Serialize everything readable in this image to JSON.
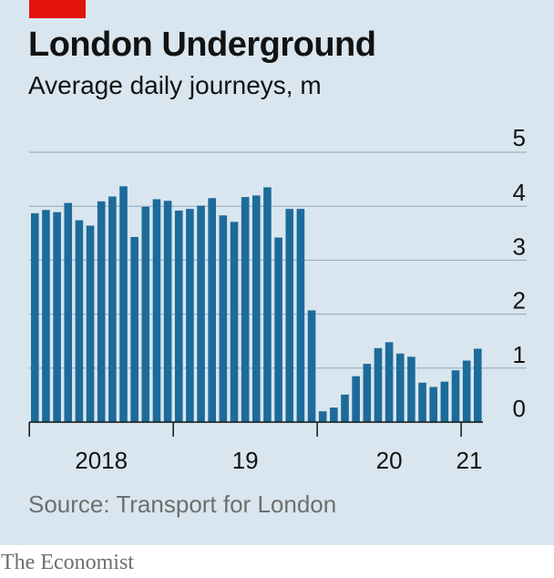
{
  "header": {
    "title": "London Underground",
    "subtitle": "Average daily journeys, m"
  },
  "footer": {
    "source": "Source: Transport for London",
    "brand": "The Economist"
  },
  "colors": {
    "bar": "#1d6b9a",
    "grid": "#8fa7b8",
    "baseline": "#121212",
    "accent": "#e3120b",
    "background": "#d9e6ef"
  },
  "chart_data": {
    "type": "bar",
    "title": "London Underground",
    "subtitle": "Average daily journeys, m",
    "ylabel": "",
    "ylim": [
      0,
      5
    ],
    "y_ticks": [
      0,
      1,
      2,
      3,
      4,
      5
    ],
    "y_tick_labels": [
      "0",
      "1",
      "2",
      "3",
      "4",
      "5"
    ],
    "grid": true,
    "x_tick_labels": [
      "2018",
      "19",
      "20",
      "21"
    ],
    "period_size": 13,
    "series": [
      {
        "values": [
          3.87,
          3.93,
          3.89,
          4.06,
          3.74,
          3.64,
          4.09,
          4.18,
          4.37,
          3.43,
          3.99,
          4.13,
          4.1,
          3.92,
          3.95,
          4.01,
          4.15,
          3.83,
          3.71,
          4.17,
          4.2,
          4.35,
          3.42,
          3.95,
          3.95,
          2.07,
          0.2,
          0.27,
          0.51,
          0.85,
          1.08,
          1.37,
          1.48,
          1.27,
          1.21,
          0.73,
          0.65,
          0.75,
          0.96,
          1.14,
          1.36
        ]
      }
    ]
  }
}
